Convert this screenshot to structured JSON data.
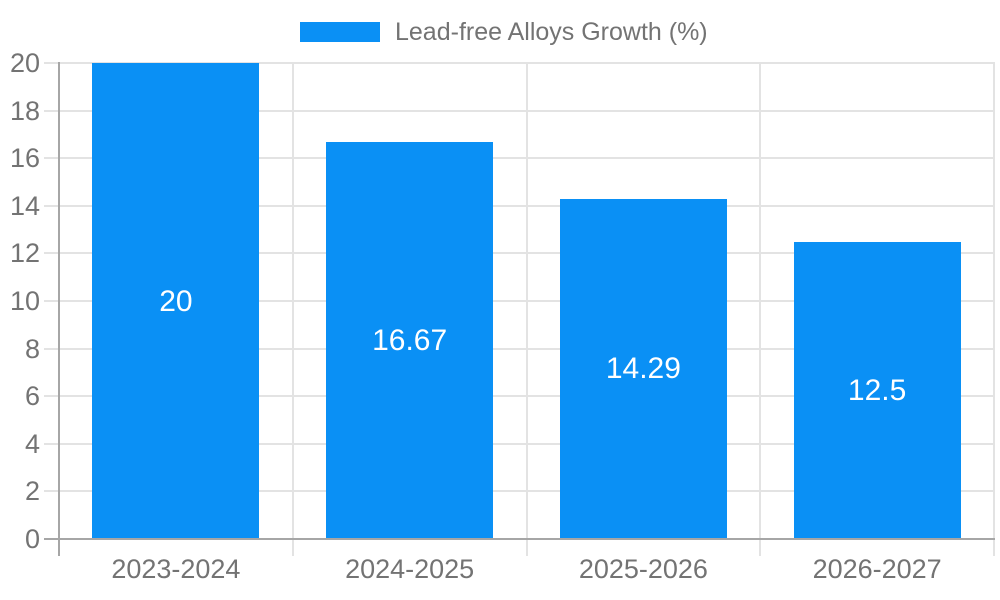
{
  "chart_data": {
    "type": "bar",
    "title": "",
    "legend": "Lead-free Alloys Growth (%)",
    "legend_position": "top-center",
    "categories": [
      "2023-2024",
      "2024-2025",
      "2025-2026",
      "2026-2027"
    ],
    "series": [
      {
        "name": "Lead-free Alloys Growth (%)",
        "values": [
          20,
          16.67,
          14.29,
          12.5
        ],
        "value_labels": [
          "20",
          "16.67",
          "14.29",
          "12.5"
        ]
      }
    ],
    "xlabel": "",
    "ylabel": "",
    "ylim": [
      0,
      20
    ],
    "yticks": [
      0,
      2,
      4,
      6,
      8,
      10,
      12,
      14,
      16,
      18,
      20
    ],
    "grid": true,
    "colors": {
      "bar": "#0a90f5",
      "axis": "#a6a6a6",
      "gridline": "#e3e3e3",
      "tick_label": "#737373",
      "legend_label": "#737373",
      "value_label": "#ffffff",
      "background": "#ffffff"
    }
  }
}
